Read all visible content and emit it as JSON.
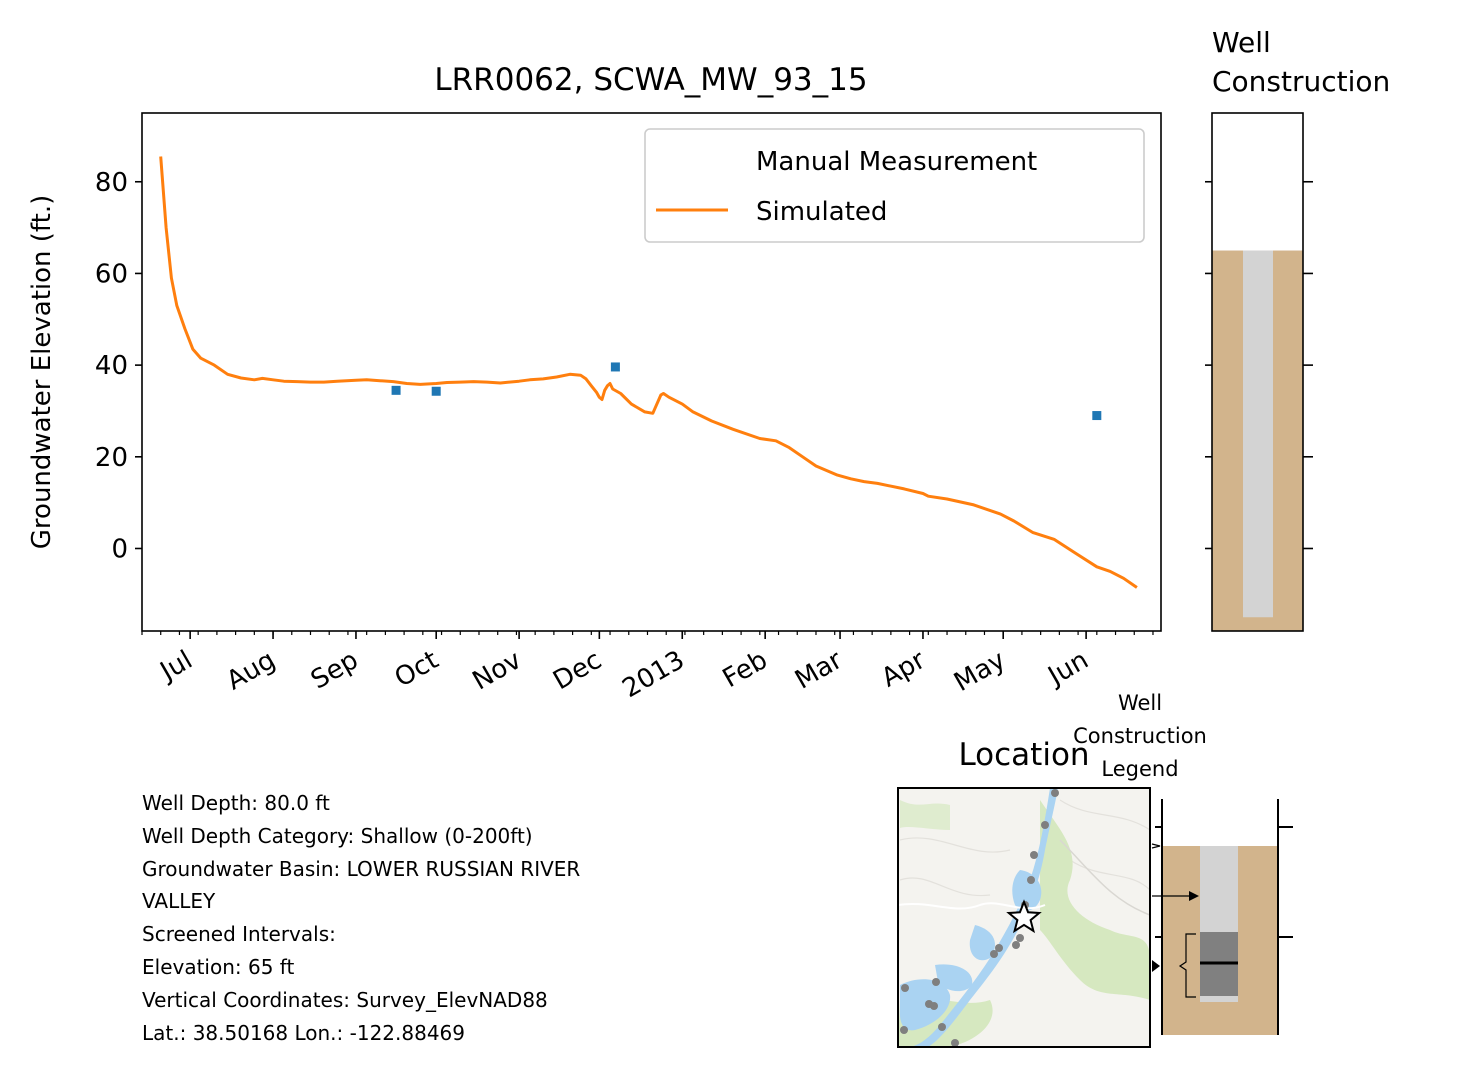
{
  "chart_data": {
    "type": "line",
    "title": "LRR0062, SCWA_MW_93_15",
    "xlabel": "",
    "ylabel": "Groundwater Elevation (ft.)",
    "ylim": [
      -18,
      95
    ],
    "x_range": [
      "2012-06-13",
      "2013-06-29"
    ],
    "yticks": [
      0,
      20,
      40,
      60,
      80
    ],
    "xtick_labels": [
      {
        "date": "2012-07-01",
        "label": "Jul"
      },
      {
        "date": "2012-08-01",
        "label": "Aug"
      },
      {
        "date": "2012-09-01",
        "label": "Sep"
      },
      {
        "date": "2012-10-01",
        "label": "Oct"
      },
      {
        "date": "2012-11-01",
        "label": "Nov"
      },
      {
        "date": "2012-12-01",
        "label": "Dec"
      },
      {
        "date": "2013-01-01",
        "label": "2013"
      },
      {
        "date": "2013-02-01",
        "label": "Feb"
      },
      {
        "date": "2013-03-01",
        "label": "Mar"
      },
      {
        "date": "2013-04-01",
        "label": "Apr"
      },
      {
        "date": "2013-05-01",
        "label": "May"
      },
      {
        "date": "2013-06-01",
        "label": "Jun"
      }
    ],
    "legend": {
      "position": "upper-right"
    },
    "series": [
      {
        "name": "Manual Measurement",
        "kind": "scatter",
        "color": "#1f77b4",
        "points": [
          {
            "x": "2012-09-16",
            "y": 34.5
          },
          {
            "x": "2012-10-01",
            "y": 34.3
          },
          {
            "x": "2012-12-07",
            "y": 39.6
          },
          {
            "x": "2013-06-05",
            "y": 29.0
          }
        ]
      },
      {
        "name": "Simulated",
        "kind": "line",
        "color": "#ff7f0e",
        "points": [
          {
            "x": "2012-06-20",
            "y": 85.5
          },
          {
            "x": "2012-06-22",
            "y": 70
          },
          {
            "x": "2012-06-24",
            "y": 59
          },
          {
            "x": "2012-06-26",
            "y": 53
          },
          {
            "x": "2012-06-29",
            "y": 48
          },
          {
            "x": "2012-07-02",
            "y": 43.5
          },
          {
            "x": "2012-07-05",
            "y": 41.5
          },
          {
            "x": "2012-07-10",
            "y": 40
          },
          {
            "x": "2012-07-15",
            "y": 38
          },
          {
            "x": "2012-07-20",
            "y": 37.2
          },
          {
            "x": "2012-07-25",
            "y": 36.8
          },
          {
            "x": "2012-07-28",
            "y": 37.1
          },
          {
            "x": "2012-08-01",
            "y": 36.8
          },
          {
            "x": "2012-08-05",
            "y": 36.5
          },
          {
            "x": "2012-08-10",
            "y": 36.4
          },
          {
            "x": "2012-08-15",
            "y": 36.3
          },
          {
            "x": "2012-08-20",
            "y": 36.3
          },
          {
            "x": "2012-08-25",
            "y": 36.5
          },
          {
            "x": "2012-09-01",
            "y": 36.7
          },
          {
            "x": "2012-09-05",
            "y": 36.8
          },
          {
            "x": "2012-09-10",
            "y": 36.6
          },
          {
            "x": "2012-09-15",
            "y": 36.4
          },
          {
            "x": "2012-09-20",
            "y": 36.0
          },
          {
            "x": "2012-09-25",
            "y": 35.8
          },
          {
            "x": "2012-10-01",
            "y": 36.0
          },
          {
            "x": "2012-10-05",
            "y": 36.2
          },
          {
            "x": "2012-10-10",
            "y": 36.3
          },
          {
            "x": "2012-10-15",
            "y": 36.4
          },
          {
            "x": "2012-10-20",
            "y": 36.3
          },
          {
            "x": "2012-10-25",
            "y": 36.1
          },
          {
            "x": "2012-11-01",
            "y": 36.5
          },
          {
            "x": "2012-11-05",
            "y": 36.8
          },
          {
            "x": "2012-11-10",
            "y": 37.0
          },
          {
            "x": "2012-11-15",
            "y": 37.4
          },
          {
            "x": "2012-11-20",
            "y": 38.0
          },
          {
            "x": "2012-11-24",
            "y": 37.8
          },
          {
            "x": "2012-11-26",
            "y": 37.0
          },
          {
            "x": "2012-11-28",
            "y": 35.5
          },
          {
            "x": "2012-11-30",
            "y": 34.0
          },
          {
            "x": "2012-12-01",
            "y": 33.0
          },
          {
            "x": "2012-12-02",
            "y": 32.5
          },
          {
            "x": "2012-12-03",
            "y": 34.5
          },
          {
            "x": "2012-12-04",
            "y": 35.5
          },
          {
            "x": "2012-12-05",
            "y": 36.0
          },
          {
            "x": "2012-12-06",
            "y": 34.8
          },
          {
            "x": "2012-12-09",
            "y": 33.8
          },
          {
            "x": "2012-12-13",
            "y": 31.5
          },
          {
            "x": "2012-12-18",
            "y": 29.8
          },
          {
            "x": "2012-12-21",
            "y": 29.5
          },
          {
            "x": "2012-12-24",
            "y": 33.5
          },
          {
            "x": "2012-12-25",
            "y": 33.8
          },
          {
            "x": "2012-12-27",
            "y": 33.0
          },
          {
            "x": "2013-01-01",
            "y": 31.5
          },
          {
            "x": "2013-01-05",
            "y": 29.8
          },
          {
            "x": "2013-01-12",
            "y": 27.8
          },
          {
            "x": "2013-01-20",
            "y": 26.0
          },
          {
            "x": "2013-01-30",
            "y": 24.0
          },
          {
            "x": "2013-02-05",
            "y": 23.5
          },
          {
            "x": "2013-02-10",
            "y": 22.0
          },
          {
            "x": "2013-02-15",
            "y": 20.0
          },
          {
            "x": "2013-02-20",
            "y": 18.0
          },
          {
            "x": "2013-02-28",
            "y": 16.0
          },
          {
            "x": "2013-03-05",
            "y": 15.2
          },
          {
            "x": "2013-03-10",
            "y": 14.6
          },
          {
            "x": "2013-03-15",
            "y": 14.2
          },
          {
            "x": "2013-03-25",
            "y": 13.0
          },
          {
            "x": "2013-04-01",
            "y": 12.0
          },
          {
            "x": "2013-04-03",
            "y": 11.4
          },
          {
            "x": "2013-04-10",
            "y": 10.8
          },
          {
            "x": "2013-04-20",
            "y": 9.5
          },
          {
            "x": "2013-04-30",
            "y": 7.5
          },
          {
            "x": "2013-05-05",
            "y": 6.0
          },
          {
            "x": "2013-05-12",
            "y": 3.5
          },
          {
            "x": "2013-05-20",
            "y": 2.0
          },
          {
            "x": "2013-05-28",
            "y": -1.0
          },
          {
            "x": "2013-06-05",
            "y": -4.0
          },
          {
            "x": "2013-06-10",
            "y": -5.0
          },
          {
            "x": "2013-06-15",
            "y": -6.5
          },
          {
            "x": "2013-06-20",
            "y": -8.5
          }
        ]
      }
    ]
  },
  "well_construction": {
    "title_line1": "Well",
    "title_line2": "Construction",
    "ylim": [
      -18,
      95
    ],
    "yticks": [
      0,
      20,
      40,
      60,
      80
    ],
    "ground_surface_ft": 65,
    "casing_bottom_ft": -15,
    "colors": {
      "soil": "#d2b48c",
      "casing": "#d3d3d3",
      "border": "#000000"
    }
  },
  "legend_panel": {
    "title_line1": "Well",
    "title_line2": "Construction",
    "title_line3": "Legend",
    "colors": {
      "soil": "#d2b48c",
      "casing": "#d3d3d3",
      "screen": "#808080"
    }
  },
  "location": {
    "title": "Location",
    "colors": {
      "water": "#aad3f2",
      "green": "#d6e8c0",
      "land": "#f4f3ef",
      "points": "#7f7f7f"
    }
  },
  "info": {
    "well_depth": "Well Depth: 80.0 ft",
    "depth_category": "Well Depth Category: Shallow (0-200ft)",
    "basin_line1": "Groundwater Basin: LOWER RUSSIAN RIVER",
    "basin_line2": "VALLEY",
    "screened": "Screened Intervals:",
    "elevation": "Elevation: 65 ft",
    "vertical": "Vertical Coordinates: Survey_ElevNAD88",
    "latlon": "Lat.: 38.50168 Lon.: -122.88469"
  }
}
